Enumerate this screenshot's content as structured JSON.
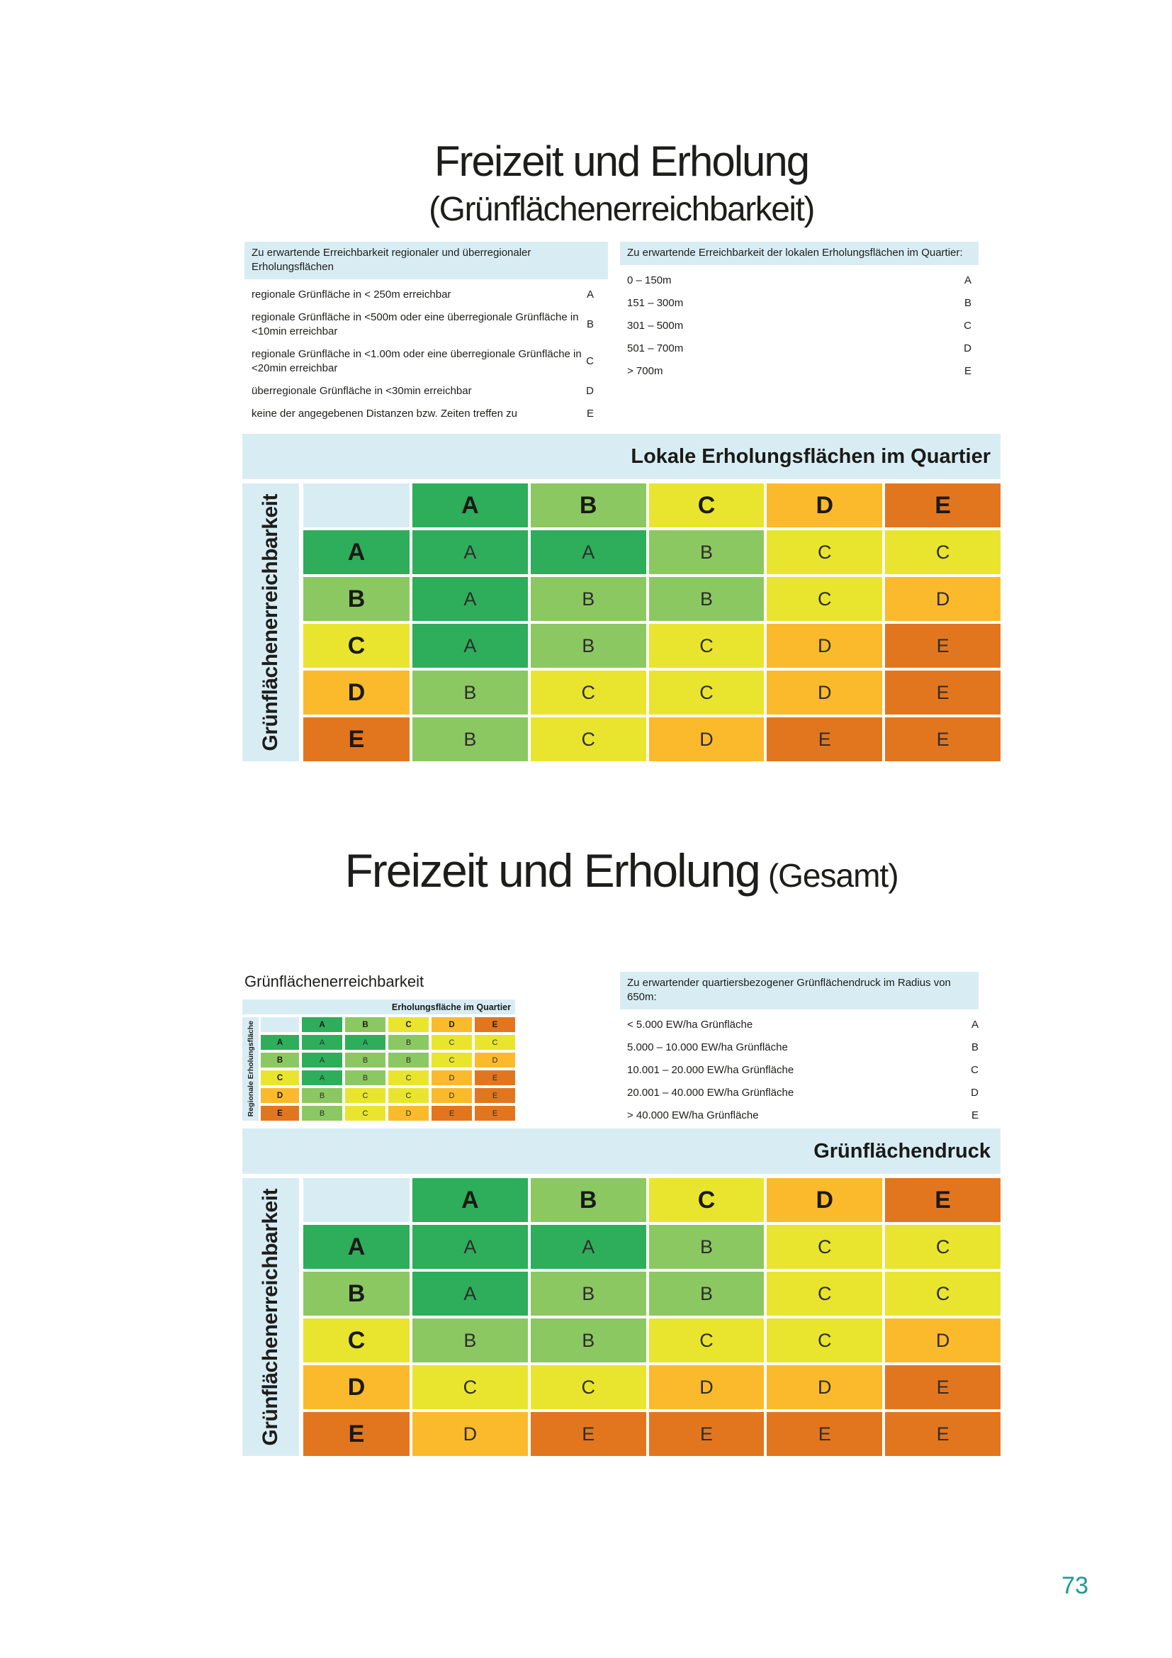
{
  "page": {
    "number": "73"
  },
  "colors": {
    "A": "#2ead5b",
    "B": "#8cc862",
    "C": "#e9e52f",
    "D": "#fbba2c",
    "E": "#e2761f",
    "band_blue": "#d8edf3",
    "page_teal": "#1b9c92"
  },
  "section1": {
    "title": "Freizeit und Erholung",
    "subtitle": "(Grünflächenerreichbarkeit)",
    "left_criteria": {
      "header": "Zu erwartende Erreichbarkeit regionaler und überregionaler Erholungsflächen",
      "rows": [
        {
          "label": "regionale Grünfläche in < 250m erreichbar",
          "grade": "A"
        },
        {
          "label": "regionale Grünfläche in <500m oder eine überregionale Grünfläche in <10min erreichbar",
          "grade": "B"
        },
        {
          "label": "regionale Grünfläche in <1.00m oder eine überregionale Grünfläche in <20min erreichbar",
          "grade": "C"
        },
        {
          "label": "überregionale Grünfläche in <30min erreichbar",
          "grade": "D"
        },
        {
          "label": "keine der angegebenen Distanzen bzw. Zeiten treffen zu",
          "grade": "E"
        }
      ]
    },
    "right_criteria": {
      "header": "Zu erwartende Erreichbarkeit der lokalen Erholungsflächen im Quartier:",
      "rows": [
        {
          "label": "0 – 150m",
          "grade": "A"
        },
        {
          "label": "151 – 300m",
          "grade": "B"
        },
        {
          "label": "301 – 500m",
          "grade": "C"
        },
        {
          "label": "501 – 700m",
          "grade": "D"
        },
        {
          "label": "> 700m",
          "grade": "E"
        }
      ]
    },
    "matrix": {
      "band_title": "Lokale Erholungsflächen im Quartier",
      "side_label": "Grünflächenerreichbarkeit",
      "col_headers": [
        "A",
        "B",
        "C",
        "D",
        "E"
      ],
      "row_headers": [
        "A",
        "B",
        "C",
        "D",
        "E"
      ],
      "cells": [
        [
          "A",
          "A",
          "B",
          "C",
          "C"
        ],
        [
          "A",
          "B",
          "B",
          "C",
          "D"
        ],
        [
          "A",
          "B",
          "C",
          "D",
          "E"
        ],
        [
          "B",
          "C",
          "C",
          "D",
          "E"
        ],
        [
          "B",
          "C",
          "D",
          "E",
          "E"
        ]
      ]
    }
  },
  "section2": {
    "title": "Freizeit und Erholung",
    "title_suffix": "(Gesamt)",
    "mini_label": "Grünflächenerreichbarkeit",
    "mini_matrix": {
      "band_title": "Erholungsfläche im Quartier",
      "side_label": "Regionale Erholungsfläche",
      "col_headers": [
        "A",
        "B",
        "C",
        "D",
        "E"
      ],
      "row_headers": [
        "A",
        "B",
        "C",
        "D",
        "E"
      ],
      "cells": [
        [
          "A",
          "A",
          "B",
          "C",
          "C"
        ],
        [
          "A",
          "B",
          "B",
          "C",
          "D"
        ],
        [
          "A",
          "B",
          "C",
          "D",
          "E"
        ],
        [
          "B",
          "C",
          "C",
          "D",
          "E"
        ],
        [
          "B",
          "C",
          "D",
          "E",
          "E"
        ]
      ]
    },
    "right_criteria": {
      "header": "Zu erwartender quartiersbezogener Grünflächendruck im Radius von 650m:",
      "rows": [
        {
          "label": "< 5.000 EW/ha Grünfläche",
          "grade": "A"
        },
        {
          "label": "5.000 – 10.000 EW/ha Grünfläche",
          "grade": "B"
        },
        {
          "label": "10.001 – 20.000 EW/ha Grünfläche",
          "grade": "C"
        },
        {
          "label": "20.001 – 40.000 EW/ha Grünfläche",
          "grade": "D"
        },
        {
          "label": "> 40.000 EW/ha Grünfläche",
          "grade": "E"
        }
      ]
    },
    "matrix": {
      "band_title": "Grünflächendruck",
      "side_label": "Grünflächenerreichbarkeit",
      "col_headers": [
        "A",
        "B",
        "C",
        "D",
        "E"
      ],
      "row_headers": [
        "A",
        "B",
        "C",
        "D",
        "E"
      ],
      "cells": [
        [
          "A",
          "A",
          "B",
          "C",
          "C"
        ],
        [
          "A",
          "B",
          "B",
          "C",
          "C"
        ],
        [
          "B",
          "B",
          "C",
          "C",
          "D"
        ],
        [
          "C",
          "C",
          "D",
          "D",
          "E"
        ],
        [
          "D",
          "E",
          "E",
          "E",
          "E"
        ]
      ]
    }
  }
}
